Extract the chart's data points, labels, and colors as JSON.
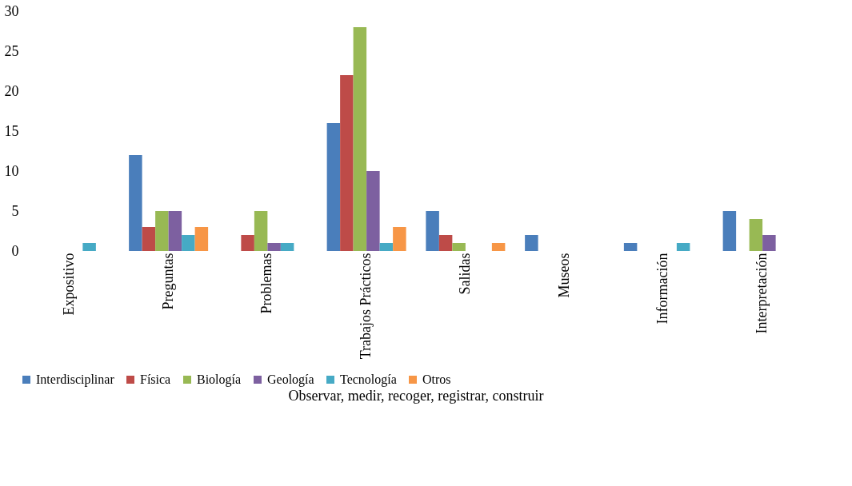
{
  "chart_data": {
    "type": "bar",
    "xlabel": "Observar, medir, recoger, registrar, construir",
    "categories": [
      "Expositivo",
      "Preguntas",
      "Problemas",
      "Trabajos Prácticos",
      "Salidas",
      "Museos",
      "Información",
      "Interpretación"
    ],
    "series": [
      {
        "name": "Interdisciplinar",
        "color": "#4a7ebb",
        "values": [
          0,
          12,
          0,
          16,
          5,
          2,
          1,
          5
        ]
      },
      {
        "name": "Física",
        "color": "#be4b48",
        "values": [
          0,
          3,
          2,
          22,
          2,
          0,
          0,
          0
        ]
      },
      {
        "name": "Biología",
        "color": "#98b954",
        "values": [
          0,
          5,
          5,
          28,
          1,
          0,
          0,
          4
        ]
      },
      {
        "name": "Geología",
        "color": "#7d60a0",
        "values": [
          0,
          5,
          1,
          10,
          0,
          0,
          0,
          2
        ]
      },
      {
        "name": "Tecnología",
        "color": "#46aac5",
        "values": [
          1,
          2,
          1,
          1,
          0,
          0,
          1,
          0
        ]
      },
      {
        "name": "Otros",
        "color": "#f79646",
        "values": [
          0,
          3,
          0,
          3,
          1,
          0,
          0,
          0
        ]
      }
    ],
    "ylim": [
      0,
      30
    ],
    "yticks": [
      0,
      5,
      10,
      15,
      20,
      25,
      30
    ],
    "grid": false,
    "legend": "bottom"
  }
}
